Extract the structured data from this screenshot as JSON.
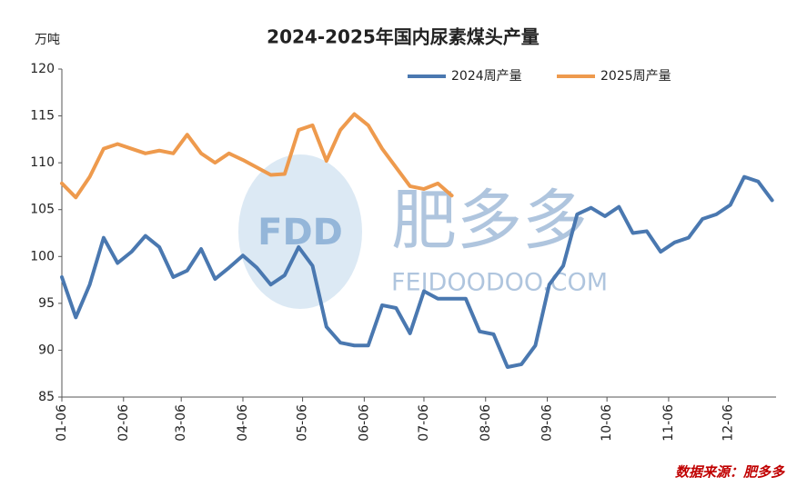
{
  "chart_data": {
    "type": "line",
    "title": "2024-2025年国内尿素煤头产量",
    "y_label": "万吨",
    "x": [
      0,
      7,
      14,
      21,
      28,
      35,
      42,
      49,
      56,
      63,
      70,
      77,
      84,
      91,
      98,
      105,
      112,
      119,
      126,
      133,
      140,
      147,
      154,
      161,
      168,
      175,
      182,
      189,
      196,
      203,
      210,
      217,
      224,
      231,
      238,
      245,
      252,
      259,
      266,
      273,
      280,
      287,
      294,
      301,
      308,
      315,
      322,
      329,
      336,
      343,
      350,
      357
    ],
    "xlim": [
      0,
      359
    ],
    "xticks": [
      {
        "value": 0,
        "label": "01-06"
      },
      {
        "value": 31,
        "label": "02-06"
      },
      {
        "value": 60,
        "label": "03-06"
      },
      {
        "value": 91,
        "label": "04-06"
      },
      {
        "value": 121,
        "label": "05-06"
      },
      {
        "value": 152,
        "label": "06-06"
      },
      {
        "value": 182,
        "label": "07-06"
      },
      {
        "value": 213,
        "label": "08-06"
      },
      {
        "value": 244,
        "label": "09-06"
      },
      {
        "value": 274,
        "label": "10-06"
      },
      {
        "value": 305,
        "label": "11-06"
      },
      {
        "value": 335,
        "label": "12-06"
      }
    ],
    "ylim": [
      85,
      120
    ],
    "yticks": [
      85,
      90,
      95,
      100,
      105,
      110,
      115,
      120
    ],
    "legend": "top-right",
    "series": [
      {
        "name": "2024周产量",
        "color": "#4a78b0",
        "values": [
          97.8,
          93.5,
          97,
          102,
          99.3,
          100.5,
          102.2,
          101,
          97.8,
          98.5,
          100.8,
          97.6,
          98.8,
          100.1,
          98.8,
          97,
          98,
          101,
          99,
          92.5,
          90.8,
          90.5,
          90.5,
          94.8,
          94.5,
          91.8,
          96.3,
          95.5,
          95.5,
          95.5,
          92,
          91.7,
          88.2,
          88.5,
          90.5,
          97,
          99,
          104.5,
          105.2,
          104.3,
          105.3,
          102.5,
          102.7,
          100.5,
          101.5,
          102,
          104,
          104.5,
          105.5,
          108.5,
          108,
          106
        ]
      },
      {
        "name": "2025周产量",
        "color": "#ee9a4d",
        "values": [
          107.8,
          106.3,
          108.5,
          111.5,
          112,
          111.5,
          111,
          111.3,
          111,
          113,
          111,
          110,
          111,
          110.3,
          109.5,
          108.7,
          108.8,
          113.5,
          114,
          110.2,
          113.5,
          115.2,
          114,
          111.5,
          109.5,
          107.5,
          107.2,
          107.8,
          106.5,
          null,
          null,
          null,
          null,
          null,
          null,
          null,
          null,
          null,
          null,
          null,
          null,
          null,
          null,
          null,
          null,
          null,
          null,
          null,
          null,
          null,
          null,
          null
        ]
      }
    ],
    "source": "数据来源：肥多多",
    "watermark": {
      "logo": "FDD",
      "name": "肥多多",
      "site": "FEIDOODOO.COM"
    }
  }
}
